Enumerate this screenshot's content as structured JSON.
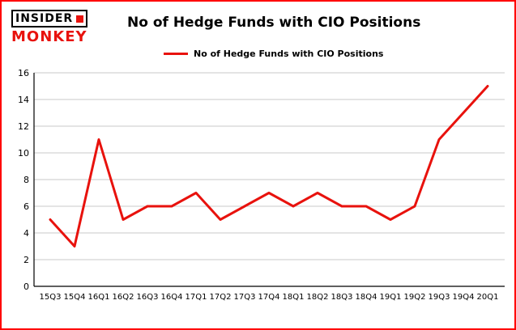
{
  "brand": {
    "top": "INSIDER",
    "bottom": "MONKEY"
  },
  "title": "No of Hedge Funds with CIO Positions",
  "legend": {
    "label": "No of Hedge Funds with CIO Positions"
  },
  "colors": {
    "accent": "#e8120d",
    "frame": "#ff0000",
    "grid": "#c9c9c9",
    "axis": "#000000"
  },
  "chart_data": {
    "type": "line",
    "title": "No of Hedge Funds with CIO Positions",
    "xlabel": "",
    "ylabel": "",
    "categories": [
      "15Q3",
      "15Q4",
      "16Q1",
      "16Q2",
      "16Q3",
      "16Q4",
      "17Q1",
      "17Q2",
      "17Q3",
      "17Q4",
      "18Q1",
      "18Q2",
      "18Q3",
      "18Q4",
      "19Q1",
      "19Q2",
      "19Q3",
      "19Q4",
      "20Q1"
    ],
    "values": [
      5,
      3,
      11,
      5,
      6,
      6,
      7,
      5,
      6,
      7,
      6,
      7,
      6,
      6,
      5,
      6,
      11,
      13,
      15
    ],
    "ylim": [
      0,
      16
    ],
    "yticks": [
      0,
      2,
      4,
      6,
      8,
      10,
      12,
      14,
      16
    ],
    "grid": true,
    "line_color": "#e8120d",
    "legend_position": "top-left"
  }
}
